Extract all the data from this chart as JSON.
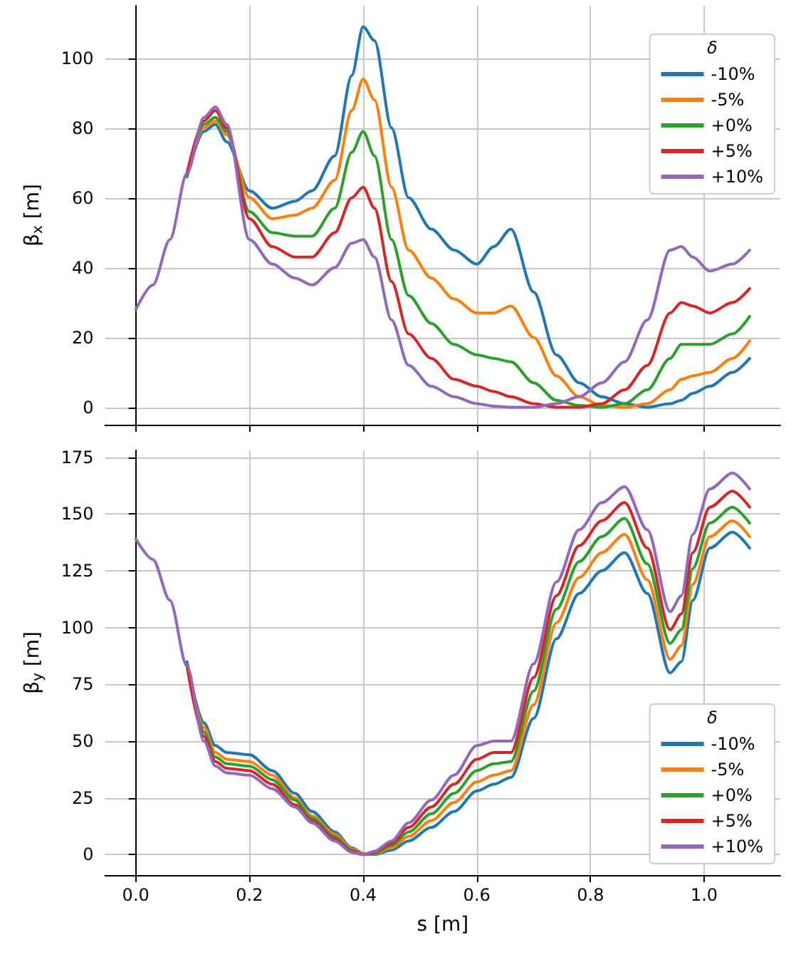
{
  "chart_data": [
    {
      "type": "line",
      "ylabel": "β$_{x}$ [m]",
      "legend_title": "δ",
      "legend": "top right",
      "grid": true,
      "tick_labels": "y",
      "x": [
        0,
        0.03,
        0.06,
        0.09,
        0.12,
        0.14,
        0.16,
        0.2,
        0.24,
        0.28,
        0.31,
        0.35,
        0.38,
        0.4,
        0.42,
        0.45,
        0.48,
        0.52,
        0.56,
        0.6,
        0.63,
        0.66,
        0.7,
        0.74,
        0.78,
        0.82,
        0.86,
        0.9,
        0.94,
        0.96,
        0.98,
        1.01,
        1.05,
        1.08
      ],
      "xlim": [
        -0.054,
        1.134
      ],
      "xticks": [
        0,
        0.2,
        0.4,
        0.6,
        0.8,
        1.0
      ],
      "ylim": [
        -5,
        115
      ],
      "yticks": [
        0,
        20,
        40,
        60,
        80,
        100
      ],
      "series": [
        {
          "name": "-10%",
          "color": "#1f77b4",
          "values": [
            null,
            null,
            null,
            66,
            79,
            81,
            76,
            62,
            57,
            59,
            62,
            72,
            95,
            109,
            105,
            80,
            60,
            51,
            45,
            41,
            46,
            51,
            33,
            15,
            7,
            3,
            1,
            0,
            1,
            2,
            4,
            6,
            10,
            14
          ]
        },
        {
          "name": "-5%",
          "color": "#ff7f0e",
          "values": [
            null,
            null,
            null,
            66,
            80,
            82,
            78,
            60,
            54,
            55,
            57,
            65,
            85,
            94,
            88,
            63,
            45,
            37,
            31,
            27,
            27,
            29,
            20,
            9,
            3,
            0.5,
            0,
            1,
            5,
            8,
            9,
            10,
            14,
            19
          ]
        },
        {
          "name": "+0%",
          "color": "#2ca02c",
          "values": [
            null,
            null,
            null,
            66,
            81,
            83,
            79,
            56,
            50,
            49,
            49,
            57,
            73,
            79,
            72,
            48,
            32,
            24,
            18,
            15,
            14,
            13,
            7,
            2,
            0.5,
            0,
            1,
            5,
            14,
            18,
            18,
            18,
            21,
            26
          ]
        },
        {
          "name": "+5%",
          "color": "#d62728",
          "values": [
            null,
            null,
            null,
            67,
            82,
            85,
            80,
            54,
            46,
            43,
            43,
            50,
            60,
            63,
            57,
            36,
            21,
            14,
            8,
            6,
            4.5,
            3,
            1,
            0,
            0,
            1,
            5,
            12,
            27,
            30,
            29,
            27,
            30,
            34
          ]
        },
        {
          "name": "+10%",
          "color": "#9467bd",
          "values": [
            28,
            35,
            48,
            67,
            83,
            86,
            81,
            48,
            41,
            37,
            35,
            40,
            47,
            48,
            43,
            25,
            12,
            6,
            3,
            1,
            0.3,
            0,
            0,
            1,
            3,
            7,
            13,
            25,
            45,
            46,
            43,
            39,
            41,
            45
          ]
        }
      ]
    },
    {
      "type": "line",
      "xlabel": "s [m]",
      "ylabel": "β$_{y}$ [m]",
      "legend_title": "δ",
      "legend": "bottom right",
      "grid": true,
      "x": [
        0,
        0.03,
        0.06,
        0.09,
        0.12,
        0.14,
        0.16,
        0.2,
        0.24,
        0.28,
        0.31,
        0.35,
        0.38,
        0.4,
        0.42,
        0.45,
        0.48,
        0.52,
        0.56,
        0.6,
        0.63,
        0.66,
        0.7,
        0.74,
        0.78,
        0.82,
        0.86,
        0.9,
        0.94,
        0.96,
        0.98,
        1.01,
        1.05,
        1.08
      ],
      "xlim": [
        -0.054,
        1.134
      ],
      "xticks": [
        {
          "value": 0,
          "label": "0.0"
        },
        0.2,
        0.4,
        0.6,
        0.8,
        {
          "value": 1,
          "label": "1.0"
        }
      ],
      "ylim": [
        -9,
        178
      ],
      "yticks": [
        0,
        25,
        50,
        75,
        100,
        125,
        150,
        175
      ],
      "series": [
        {
          "name": "-10%",
          "color": "#1f77b4",
          "values": [
            null,
            null,
            null,
            85,
            58,
            48,
            45,
            44,
            37,
            27,
            19,
            10,
            3,
            0.5,
            0,
            2,
            6,
            12,
            19,
            28,
            31,
            34,
            60,
            95,
            115,
            125,
            133,
            115,
            80,
            85,
            112,
            135,
            142,
            135
          ]
        },
        {
          "name": "-5%",
          "color": "#ff7f0e",
          "values": [
            null,
            null,
            null,
            84,
            56,
            45,
            42,
            41,
            35,
            25,
            17,
            9,
            2.5,
            0.3,
            0.3,
            3,
            8,
            15,
            23,
            32,
            35,
            37,
            66,
            102,
            122,
            133,
            141,
            121,
            86,
            92,
            119,
            140,
            147,
            140
          ]
        },
        {
          "name": "+0%",
          "color": "#2ca02c",
          "values": [
            null,
            null,
            null,
            84,
            54,
            43,
            40,
            39,
            33,
            24,
            16,
            8,
            2,
            0,
            0.5,
            4,
            10,
            18,
            27,
            37,
            40,
            41,
            72,
            108,
            129,
            140,
            148,
            128,
            93,
            99,
            126,
            146,
            153,
            146
          ]
        },
        {
          "name": "+5%",
          "color": "#d62728",
          "values": [
            null,
            null,
            null,
            83,
            52,
            41,
            38,
            37,
            31,
            22,
            15,
            7,
            1.5,
            0,
            1,
            5,
            12,
            21,
            31,
            42,
            45,
            45,
            78,
            114,
            136,
            147,
            155,
            135,
            99,
            106,
            133,
            153,
            160,
            153
          ]
        },
        {
          "name": "+10%",
          "color": "#9467bd",
          "values": [
            139,
            130,
            112,
            83,
            50,
            39,
            36,
            35,
            29,
            21,
            14,
            6,
            1,
            0,
            1.5,
            6,
            14,
            24,
            35,
            48,
            50,
            50,
            84,
            120,
            143,
            155,
            162,
            143,
            107,
            114,
            141,
            161,
            168,
            161
          ]
        }
      ]
    }
  ]
}
